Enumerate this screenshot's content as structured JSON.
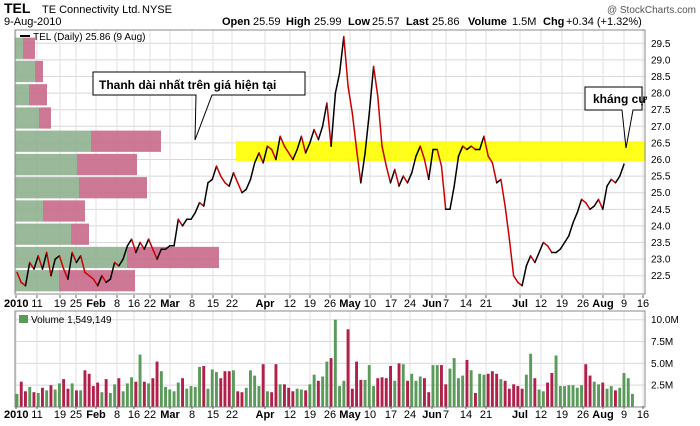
{
  "header": {
    "symbol": "TEL",
    "company": "TE Connectivity Ltd.",
    "exchange": "NYSE",
    "date": "9-Aug-2010",
    "copyright": "@ StockCharts.com",
    "quote": {
      "open_label": "Open",
      "open": "25.59",
      "high_label": "High",
      "high": "25.99",
      "low_label": "Low",
      "low": "25.57",
      "last_label": "Last",
      "last": "25.86",
      "volume_label": "Volume",
      "volume": "1.5M",
      "chg_label": "Chg",
      "chg": "+0.34 (+1.32%)"
    }
  },
  "colors": {
    "up": "#000000",
    "down": "#cc0000",
    "resistance_band": "#ffff00",
    "vbp_up": "#8fb08f",
    "vbp_down": "#c86a8a",
    "volume_up": "#5a9a5a",
    "volume_down": "#b0204a"
  },
  "annotations": {
    "vbp_note": "Thanh dài nhất trên giá hiện tại",
    "resistance_note": "kháng cự"
  },
  "chart_data": [
    {
      "type": "line",
      "legend": "TEL (Daily) 25.86 (9 Aug)",
      "x_ticks": [
        "2010",
        "11",
        "19",
        "25",
        "Feb",
        "8",
        "16",
        "22",
        "Mar",
        "8",
        "15",
        "22",
        "Apr",
        "12",
        "19",
        "26",
        "May",
        "10",
        "17",
        "24",
        "Jun",
        "7",
        "14",
        "21",
        "Jul",
        "12",
        "19",
        "26",
        "Aug",
        "9",
        "16"
      ],
      "y_ticks": [
        22.5,
        23.0,
        23.5,
        24.0,
        24.5,
        25.0,
        25.5,
        26.0,
        26.5,
        27.0,
        27.5,
        28.0,
        28.5,
        29.0,
        29.5
      ],
      "ylim": [
        21.95,
        29.9
      ],
      "grid": true,
      "resistance_band": [
        25.95,
        26.55
      ],
      "series": [
        {
          "name": "TEL",
          "values": [
            22.6,
            22.3,
            22.2,
            22.9,
            22.7,
            23.1,
            22.7,
            23.2,
            22.5,
            23.0,
            23.1,
            22.7,
            22.4,
            23.2,
            22.9,
            23.1,
            22.6,
            22.5,
            22.4,
            22.2,
            22.5,
            22.3,
            22.4,
            22.9,
            22.8,
            23.0,
            23.4,
            23.6,
            23.2,
            23.5,
            23.3,
            23.6,
            23.3,
            23.0,
            23.3,
            23.3,
            23.4,
            23.4,
            24.2,
            24.0,
            24.2,
            24.2,
            24.4,
            24.7,
            24.6,
            25.3,
            25.4,
            25.8,
            25.5,
            25.3,
            25.2,
            25.6,
            25.3,
            25.0,
            25.1,
            25.4,
            25.9,
            26.2,
            25.9,
            26.4,
            26.3,
            26.0,
            26.7,
            26.4,
            26.2,
            26.0,
            26.3,
            26.7,
            26.2,
            26.5,
            26.9,
            26.6,
            27.0,
            27.7,
            26.4,
            28.0,
            28.6,
            29.7,
            28.2,
            27.4,
            26.3,
            25.3,
            26.2,
            27.4,
            28.8,
            27.9,
            26.4,
            25.8,
            25.3,
            25.7,
            25.2,
            25.5,
            25.3,
            25.6,
            26.1,
            26.4,
            26.0,
            25.4,
            26.3,
            26.3,
            25.8,
            24.5,
            24.5,
            25.2,
            26.1,
            26.4,
            26.3,
            26.4,
            26.3,
            26.3,
            26.7,
            26.1,
            25.9,
            25.3,
            25.4,
            24.6,
            23.6,
            22.5,
            22.3,
            22.2,
            22.8,
            23.1,
            22.9,
            23.2,
            23.5,
            23.4,
            23.2,
            23.2,
            23.3,
            23.5,
            23.7,
            24.1,
            24.4,
            24.8,
            24.7,
            24.5,
            24.6,
            24.8,
            24.5,
            25.2,
            25.4,
            25.3,
            25.5,
            25.86
          ]
        }
      ],
      "volume_by_price": [
        {
          "price_low": 22.0,
          "price_high": 22.7,
          "up": 1.1,
          "down": 1.9
        },
        {
          "price_low": 22.7,
          "price_high": 23.4,
          "up": 2.8,
          "down": 2.3
        },
        {
          "price_low": 23.4,
          "price_high": 24.1,
          "up": 1.4,
          "down": 0.45
        },
        {
          "price_low": 24.1,
          "price_high": 24.8,
          "up": 0.7,
          "down": 1.05
        },
        {
          "price_low": 24.8,
          "price_high": 25.5,
          "up": 1.6,
          "down": 1.7
        },
        {
          "price_low": 25.5,
          "price_high": 26.2,
          "up": 1.55,
          "down": 1.5
        },
        {
          "price_low": 26.2,
          "price_high": 26.9,
          "up": 1.9,
          "down": 1.75
        },
        {
          "price_low": 26.9,
          "price_high": 27.6,
          "up": 0.6,
          "down": 0.3
        },
        {
          "price_low": 27.6,
          "price_high": 28.3,
          "up": 0.35,
          "down": 0.45
        },
        {
          "price_low": 28.3,
          "price_high": 29.0,
          "up": 0.5,
          "down": 0.2
        },
        {
          "price_low": 29.0,
          "price_high": 29.7,
          "up": 0.2,
          "down": 0.3
        }
      ]
    },
    {
      "type": "bar",
      "legend": "Volume 1,549,149",
      "y_ticks": [
        "2.5M",
        "5.0M",
        "7.5M",
        "10.0M"
      ],
      "y_tick_values": [
        2.5,
        5.0,
        7.5,
        10.0
      ],
      "ylim": [
        0,
        11.0
      ],
      "grid": true,
      "series": [
        {
          "name": "Volume",
          "values": [
            1.5,
            2.9,
            1.8,
            2.3,
            1.7,
            1.6,
            2.2,
            1.9,
            2.5,
            2.0,
            2.7,
            3.2,
            2.1,
            2.7,
            1.9,
            1.9,
            4.2,
            3.8,
            2.4,
            2.8,
            1.7,
            3.2,
            1.6,
            2.6,
            3.3,
            1.8,
            2.7,
            3.4,
            2.9,
            6.0,
            2.9,
            2.7,
            3.3,
            5.2,
            4.1,
            2.3,
            2.0,
            1.8,
            2.8,
            3.3,
            2.1,
            2.4,
            2.3,
            4.6,
            4.7,
            2.1,
            4.3,
            4.0,
            3.3,
            4.1,
            4.1,
            4.2,
            1.8,
            1.7,
            2.2,
            4.2,
            3.6,
            2.4,
            4.9,
            1.8,
            1.7,
            4.9,
            2.6,
            2.6,
            2.2,
            1.8,
            2.1,
            2.0,
            1.9,
            2.6,
            3.7,
            3.0,
            3.5,
            5.2,
            5.6,
            10.0,
            2.4,
            3.0,
            8.9,
            2.1,
            5.2,
            3.1,
            3.1,
            4.8,
            2.4,
            3.3,
            3.4,
            3.3,
            4.7,
            3.0,
            5.0,
            4.9,
            3.0,
            3.8,
            3.0,
            3.5,
            3.3,
            1.7,
            4.8,
            4.8,
            4.8,
            2.6,
            4.4,
            5.6,
            3.3,
            3.6,
            5.4,
            4.2,
            1.6,
            3.8,
            3.7,
            3.8,
            4.1,
            3.8,
            3.2,
            3.0,
            2.1,
            2.6,
            2.4,
            2.1,
            3.7,
            6.1,
            3.3,
            2.0,
            1.8,
            2.8,
            3.9,
            5.9,
            2.4,
            2.4,
            2.5,
            2.5,
            2.2,
            2.5,
            4.9,
            3.6,
            2.9,
            2.6,
            2.8,
            2.1,
            2.4,
            1.9,
            2.2,
            3.9,
            3.3,
            1.5
          ]
        }
      ]
    }
  ]
}
